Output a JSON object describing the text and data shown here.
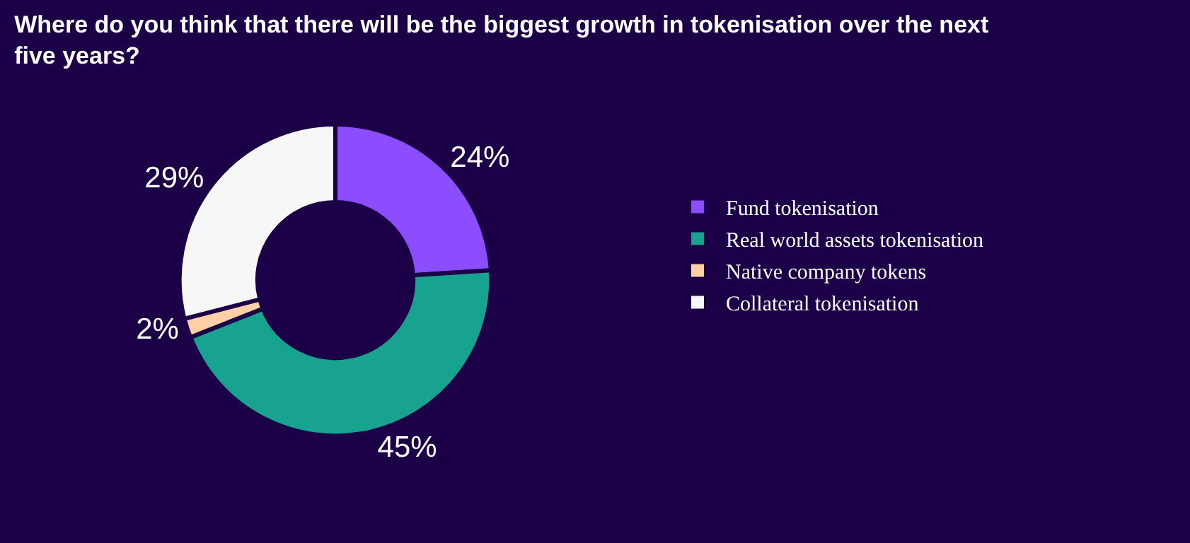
{
  "chart_data": {
    "type": "donut",
    "title": "Where do you think that there will be the biggest growth in tokenisation over the next five years?",
    "categories": [
      "Fund tokenisation",
      "Real world assets tokenisation",
      "Native company tokens",
      "Collateral tokenisation"
    ],
    "values": [
      24,
      45,
      2,
      29
    ],
    "value_labels": [
      "24%",
      "45%",
      "2%",
      "29%"
    ],
    "colors": [
      "#8c4dff",
      "#18a391",
      "#ffcfa6",
      "#f7f7f7"
    ],
    "legend": "right"
  }
}
